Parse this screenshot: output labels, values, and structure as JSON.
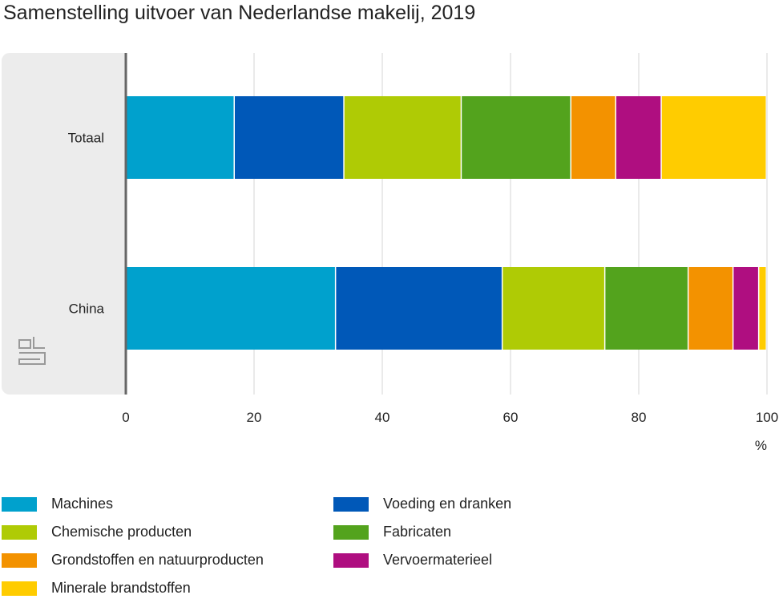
{
  "chart_data": {
    "type": "bar",
    "orientation": "horizontal",
    "stacked": true,
    "title": "Samenstelling uitvoer van Nederlandse makelij, 2019",
    "xlabel": "%",
    "xlim": [
      0,
      100
    ],
    "xticks": [
      0,
      20,
      40,
      60,
      80,
      100
    ],
    "categories": [
      "Totaal",
      "China"
    ],
    "series": [
      {
        "name": "Machines",
        "color": "#00a1cd",
        "values": [
          17.0,
          32.8
        ]
      },
      {
        "name": "Voeding en dranken",
        "color": "#0058b8",
        "values": [
          17.1,
          26.0
        ]
      },
      {
        "name": "Chemische producten",
        "color": "#afcb05",
        "values": [
          18.3,
          16.0
        ]
      },
      {
        "name": "Fabricaten",
        "color": "#53a31d",
        "values": [
          17.1,
          13.0
        ]
      },
      {
        "name": "Grondstoffen en natuurproducten",
        "color": "#f39200",
        "values": [
          7.0,
          7.0
        ]
      },
      {
        "name": "Vervoermaterieel",
        "color": "#af0e80",
        "values": [
          7.1,
          4.0
        ]
      },
      {
        "name": "Minerale brandstoffen",
        "color": "#ffcc00",
        "values": [
          16.4,
          1.2
        ]
      }
    ],
    "legend_order": [
      "Machines",
      "Voeding en dranken",
      "Chemische producten",
      "Fabricaten",
      "Grondstoffen en natuurproducten",
      "Vervoermaterieel",
      "Minerale brandstoffen"
    ],
    "legend_placement": "bottom",
    "grid": true
  }
}
